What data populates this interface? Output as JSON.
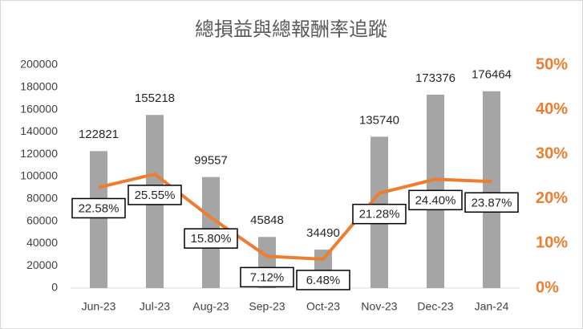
{
  "chart_data": {
    "type": "combo",
    "title": "總損益與總報酬率追蹤",
    "categories": [
      "Jun-23",
      "Jul-23",
      "Aug-23",
      "Sep-23",
      "Oct-23",
      "Nov-23",
      "Dec-23",
      "Jan-24"
    ],
    "series": [
      {
        "type": "bar",
        "color": "#a5a5a5",
        "values": [
          122821,
          155218,
          99557,
          45848,
          34490,
          135740,
          173376,
          176464
        ]
      },
      {
        "type": "line",
        "axis": "y2",
        "color": "#ed7d31",
        "values": [
          22.58,
          25.55,
          15.8,
          7.12,
          6.48,
          21.28,
          24.4,
          23.87
        ],
        "value_labels": [
          "22.58%",
          "25.55%",
          "15.80%",
          "7.12%",
          "6.48%",
          "21.28%",
          "24.40%",
          "23.87%"
        ]
      }
    ],
    "ylim": [
      0,
      200000
    ],
    "yticks": [
      0,
      20000,
      40000,
      60000,
      80000,
      100000,
      120000,
      140000,
      160000,
      180000,
      200000
    ],
    "y2lim": [
      0,
      50
    ],
    "y2ticks": [
      {
        "value": 0,
        "label": "0%"
      },
      {
        "value": 10,
        "label": "10%"
      },
      {
        "value": 20,
        "label": "20%"
      },
      {
        "value": 30,
        "label": "30%"
      },
      {
        "value": 40,
        "label": "40%"
      },
      {
        "value": 50,
        "label": "50%"
      }
    ],
    "grid": false
  }
}
